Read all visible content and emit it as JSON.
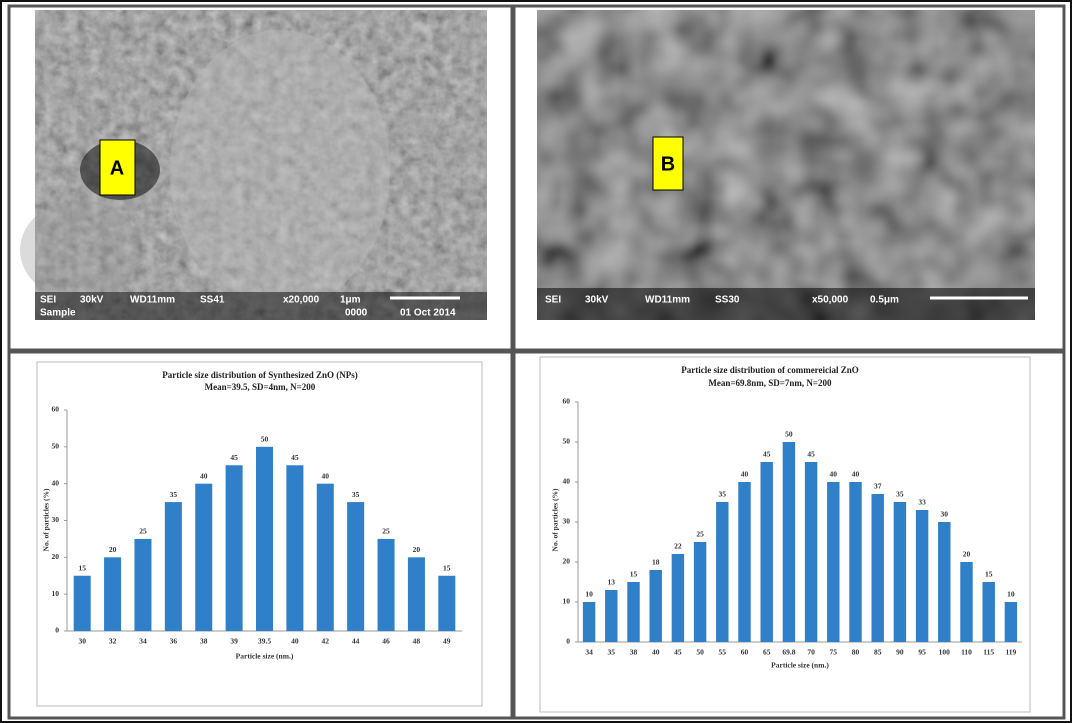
{
  "images": [
    {
      "letter": "A",
      "info": [
        "SEI",
        "30kV",
        "WD11mm",
        "SS41",
        "x20,000",
        "1μm",
        "Sample",
        "0000",
        "01 Oct 2014"
      ]
    },
    {
      "letter": "B",
      "info": [
        "SEI",
        "30kV",
        "WD11mm",
        "SS30",
        "x50,000",
        "0.5μm"
      ]
    }
  ],
  "chart_data": [
    {
      "type": "bar",
      "title": "Particle size distribution of Synthesized ZnO (NPs)",
      "subtitle": "Mean=39.5, SD=4nm, N=200",
      "x_label": "Particle size (nm.)",
      "y_label": "No. of particles (%)",
      "categories": [
        "30",
        "32",
        "34",
        "36",
        "38",
        "39",
        "39.5",
        "40",
        "42",
        "44",
        "46",
        "48",
        "49"
      ],
      "values": [
        15,
        20,
        25,
        35,
        40,
        45,
        50,
        45,
        40,
        35,
        25,
        20,
        15
      ],
      "color": "#2f80c8",
      "ylim": [
        0,
        60
      ],
      "yticks": [
        0,
        10,
        20,
        30,
        40,
        50,
        60
      ],
      "grid": false
    },
    {
      "type": "bar",
      "title": "Particle size distribution of commereicial ZnO",
      "subtitle": "Mean=69.8nm, SD=7nm, N=200",
      "x_label": "Particle size (nm.)",
      "y_label": "No. of particles (%)",
      "categories": [
        "34",
        "35",
        "38",
        "40",
        "45",
        "50",
        "55",
        "60",
        "65",
        "69.8",
        "70",
        "75",
        "80",
        "85",
        "90",
        "95",
        "100",
        "110",
        "115",
        "119"
      ],
      "values": [
        10,
        13,
        15,
        18,
        22,
        25,
        35,
        40,
        45,
        50,
        45,
        40,
        40,
        37,
        35,
        33,
        30,
        20,
        15,
        10
      ],
      "color": "#2f80c8",
      "ylim": [
        0,
        60
      ],
      "yticks": [
        0,
        10,
        20,
        30,
        40,
        50,
        60
      ],
      "grid": false
    }
  ]
}
